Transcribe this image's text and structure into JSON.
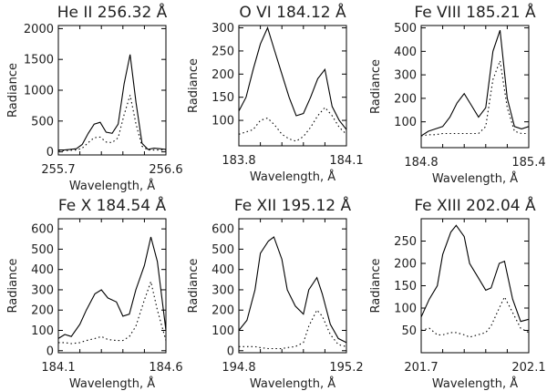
{
  "chart_data": [
    {
      "type": "line",
      "title": "He II 256.32 Å",
      "xlabel": "Wavelength, Å",
      "ylabel": "Radiance",
      "xlim": [
        255.7,
        256.6
      ],
      "ylim": [
        -50,
        2050
      ],
      "xticks": [
        "255.7",
        "256.6"
      ],
      "yticks": [
        0,
        500,
        1000,
        1500,
        2000
      ],
      "series": [
        {
          "name": "solid",
          "style": "solid",
          "x": [
            255.7,
            255.75,
            255.8,
            255.85,
            255.9,
            255.95,
            256.0,
            256.05,
            256.1,
            256.15,
            256.2,
            256.25,
            256.3,
            256.35,
            256.4,
            256.45,
            256.5,
            256.55,
            256.6
          ],
          "y": [
            30,
            30,
            40,
            50,
            120,
            300,
            450,
            480,
            320,
            300,
            450,
            1100,
            1580,
            800,
            140,
            40,
            60,
            50,
            40
          ]
        },
        {
          "name": "dotted",
          "style": "dotted",
          "x": [
            255.7,
            255.75,
            255.8,
            255.85,
            255.9,
            255.95,
            256.0,
            256.05,
            256.1,
            256.15,
            256.2,
            256.25,
            256.3,
            256.35,
            256.4,
            256.45,
            256.5,
            256.55,
            256.6
          ],
          "y": [
            20,
            20,
            25,
            30,
            60,
            150,
            230,
            240,
            160,
            150,
            230,
            600,
            920,
            450,
            90,
            30,
            30,
            30,
            25
          ]
        }
      ]
    },
    {
      "type": "line",
      "title": "O VI 184.12 Å",
      "xlabel": "Wavelength, Å",
      "ylabel": "Radiance",
      "xlim": [
        183.8,
        184.1
      ],
      "ylim": [
        45,
        305
      ],
      "xticks": [
        "183.8",
        "184.1"
      ],
      "yticks": [
        100,
        150,
        200,
        250,
        300
      ],
      "series": [
        {
          "name": "solid",
          "style": "solid",
          "x": [
            183.8,
            183.82,
            183.84,
            183.86,
            183.88,
            183.9,
            183.92,
            183.94,
            183.96,
            183.98,
            184.0,
            184.02,
            184.04,
            184.06,
            184.08,
            184.1
          ],
          "y": [
            120,
            150,
            210,
            265,
            300,
            250,
            200,
            150,
            110,
            115,
            150,
            190,
            210,
            130,
            100,
            80
          ]
        },
        {
          "name": "dotted",
          "style": "dotted",
          "x": [
            183.8,
            183.82,
            183.84,
            183.86,
            183.88,
            183.9,
            183.92,
            183.94,
            183.96,
            183.98,
            184.0,
            184.02,
            184.04,
            184.06,
            184.08,
            184.1
          ],
          "y": [
            70,
            75,
            80,
            100,
            105,
            90,
            70,
            60,
            55,
            65,
            85,
            110,
            128,
            110,
            85,
            70
          ]
        }
      ]
    },
    {
      "type": "line",
      "title": "Fe VIII 185.21 Å",
      "xlabel": "Wavelength, Å",
      "ylabel": "Radiance",
      "xlim": [
        184.8,
        185.4
      ],
      "ylim": [
        -10,
        510
      ],
      "xticks": [
        "184.8",
        "185.4"
      ],
      "yticks": [
        100,
        200,
        300,
        400,
        500
      ],
      "series": [
        {
          "name": "solid",
          "style": "solid",
          "x": [
            184.8,
            184.84,
            184.88,
            184.92,
            184.96,
            185.0,
            185.04,
            185.08,
            185.12,
            185.16,
            185.2,
            185.24,
            185.28,
            185.32,
            185.36,
            185.4
          ],
          "y": [
            40,
            60,
            70,
            80,
            120,
            180,
            220,
            170,
            120,
            160,
            400,
            490,
            200,
            80,
            70,
            80
          ]
        },
        {
          "name": "dotted",
          "style": "dotted",
          "x": [
            184.8,
            184.84,
            184.88,
            184.92,
            184.96,
            185.0,
            185.04,
            185.08,
            185.12,
            185.16,
            185.2,
            185.24,
            185.28,
            185.32,
            185.36,
            185.4
          ],
          "y": [
            40,
            45,
            45,
            50,
            50,
            50,
            50,
            50,
            50,
            80,
            280,
            360,
            160,
            60,
            50,
            50
          ]
        }
      ]
    },
    {
      "type": "line",
      "title": "Fe X 184.54 Å",
      "xlabel": "Wavelength, Å",
      "ylabel": "Radiance",
      "xlim": [
        184.1,
        184.6
      ],
      "ylim": [
        -10,
        650
      ],
      "xticks": [
        "184.1",
        "184.6"
      ],
      "yticks": [
        0,
        100,
        200,
        300,
        400,
        500,
        600
      ],
      "series": [
        {
          "name": "solid",
          "style": "solid",
          "x": [
            184.1,
            184.13,
            184.16,
            184.2,
            184.23,
            184.27,
            184.3,
            184.33,
            184.37,
            184.4,
            184.43,
            184.46,
            184.5,
            184.53,
            184.56,
            184.6
          ],
          "y": [
            60,
            80,
            70,
            130,
            200,
            280,
            300,
            260,
            240,
            170,
            180,
            300,
            420,
            560,
            440,
            100
          ]
        },
        {
          "name": "dotted",
          "style": "dotted",
          "x": [
            184.1,
            184.13,
            184.16,
            184.2,
            184.23,
            184.27,
            184.3,
            184.33,
            184.37,
            184.4,
            184.43,
            184.46,
            184.5,
            184.53,
            184.56,
            184.6
          ],
          "y": [
            40,
            40,
            35,
            40,
            50,
            60,
            70,
            55,
            50,
            50,
            70,
            120,
            250,
            340,
            200,
            50
          ]
        }
      ]
    },
    {
      "type": "line",
      "title": "Fe XII 195.12 Å",
      "xlabel": "Wavelength, Å",
      "ylabel": "Radiance",
      "xlim": [
        194.8,
        195.2
      ],
      "ylim": [
        -10,
        650
      ],
      "xticks": [
        "194.8",
        "195.2"
      ],
      "yticks": [
        0,
        100,
        200,
        300,
        400,
        500,
        600
      ],
      "series": [
        {
          "name": "solid",
          "style": "solid",
          "x": [
            194.8,
            194.83,
            194.86,
            194.88,
            194.91,
            194.93,
            194.96,
            194.98,
            195.01,
            195.04,
            195.06,
            195.09,
            195.11,
            195.14,
            195.17,
            195.2
          ],
          "y": [
            100,
            150,
            300,
            480,
            540,
            560,
            450,
            300,
            220,
            180,
            300,
            360,
            280,
            130,
            60,
            40
          ]
        },
        {
          "name": "dotted",
          "style": "dotted",
          "x": [
            194.8,
            194.83,
            194.86,
            194.88,
            194.91,
            194.93,
            194.96,
            194.98,
            195.01,
            195.04,
            195.06,
            195.09,
            195.11,
            195.14,
            195.17,
            195.2
          ],
          "y": [
            20,
            20,
            20,
            15,
            10,
            10,
            10,
            15,
            20,
            40,
            120,
            200,
            170,
            80,
            30,
            20
          ]
        }
      ]
    },
    {
      "type": "line",
      "title": "Fe XIII 202.04 Å",
      "xlabel": "Wavelength, Å",
      "ylabel": "Radiance",
      "xlim": [
        201.7,
        202.1
      ],
      "ylim": [
        0,
        300
      ],
      "xticks": [
        "201.7",
        "202.1"
      ],
      "yticks": [
        50,
        100,
        150,
        200,
        250
      ],
      "series": [
        {
          "name": "solid",
          "style": "solid",
          "x": [
            201.7,
            201.73,
            201.76,
            201.78,
            201.81,
            201.83,
            201.86,
            201.88,
            201.91,
            201.94,
            201.96,
            201.99,
            202.01,
            202.04,
            202.07,
            202.1
          ],
          "y": [
            80,
            120,
            150,
            220,
            270,
            285,
            260,
            200,
            170,
            140,
            145,
            200,
            205,
            120,
            70,
            75
          ]
        },
        {
          "name": "dotted",
          "style": "dotted",
          "x": [
            201.7,
            201.73,
            201.76,
            201.78,
            201.81,
            201.83,
            201.86,
            201.88,
            201.91,
            201.94,
            201.96,
            201.99,
            202.01,
            202.04,
            202.07,
            202.1
          ],
          "y": [
            50,
            55,
            40,
            40,
            45,
            45,
            40,
            35,
            40,
            45,
            60,
            100,
            125,
            90,
            55,
            45
          ]
        }
      ]
    }
  ]
}
